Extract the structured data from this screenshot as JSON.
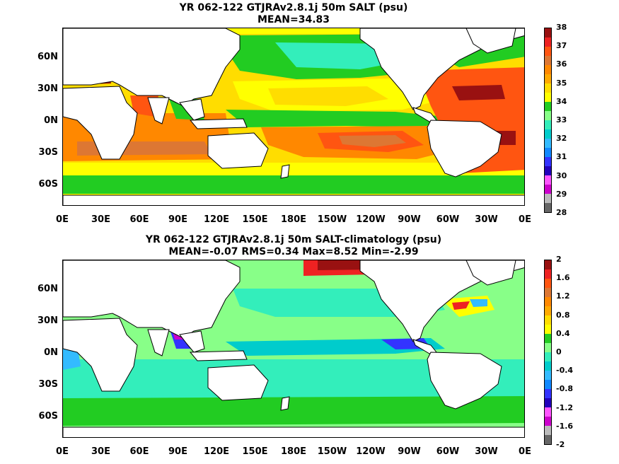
{
  "maps": [
    {
      "title_line1": "YR 062-122 GTJRAv2.8.1j 50m SALT (psu)",
      "title_line2": "MEAN=34.83",
      "lat_labels": [
        "60N",
        "30N",
        "0N",
        "30S",
        "60S"
      ],
      "lat_values": [
        60,
        30,
        0,
        -30,
        -60
      ],
      "lon_labels": [
        "0E",
        "30E",
        "60E",
        "90E",
        "120E",
        "150E",
        "180E",
        "150W",
        "120W",
        "90W",
        "60W",
        "30W",
        "0E"
      ],
      "colorbar": {
        "tick_labels": [
          "38",
          "37",
          "36",
          "35",
          "34",
          "33",
          "32",
          "31",
          "30",
          "29",
          "28"
        ],
        "tick_values": [
          38,
          37,
          36,
          35,
          34,
          33,
          32,
          31,
          30,
          29,
          28
        ],
        "min": 28,
        "max": 38,
        "colors": [
          "#666666",
          "#bbbbbb",
          "#cc00cc",
          "#ff55ff",
          "#2200bb",
          "#3333ff",
          "#1188ff",
          "#33bbff",
          "#00cccc",
          "#33eebb",
          "#88ff88",
          "#22cc22",
          "#ffff00",
          "#ffdd00",
          "#ffaa00",
          "#ff8800",
          "#dd7733",
          "#ff5511",
          "#ee2222",
          "#991111"
        ]
      }
    },
    {
      "title_line1": "YR 062-122 GTJRAv2.8.1j 50m SALT-climatology (psu)",
      "title_line2": "MEAN=-0.07   RMS=0.34   Max=8.52   Min=-2.99",
      "lat_labels": [
        "60N",
        "30N",
        "0N",
        "30S",
        "60S"
      ],
      "lat_values": [
        60,
        30,
        0,
        -30,
        -60
      ],
      "lon_labels": [
        "0E",
        "30E",
        "60E",
        "90E",
        "120E",
        "150E",
        "180E",
        "150W",
        "120W",
        "90W",
        "60W",
        "30W",
        "0E"
      ],
      "colorbar": {
        "tick_labels": [
          "2",
          "1.6",
          "1.2",
          "0.8",
          "0.4",
          "0",
          "-0.4",
          "-0.8",
          "-1.2",
          "-1.6",
          "-2"
        ],
        "tick_values": [
          2,
          1.6,
          1.2,
          0.8,
          0.4,
          0,
          -0.4,
          -0.8,
          -1.2,
          -1.6,
          -2
        ],
        "min": -2,
        "max": 2,
        "colors": [
          "#666666",
          "#bbbbbb",
          "#cc00cc",
          "#ff55ff",
          "#2200bb",
          "#3333ff",
          "#1188ff",
          "#33bbff",
          "#00cccc",
          "#33eebb",
          "#88ff88",
          "#22cc22",
          "#ffff00",
          "#ffdd00",
          "#ffaa00",
          "#ff8800",
          "#dd7733",
          "#ff5511",
          "#ee2222",
          "#991111"
        ]
      }
    }
  ],
  "style": {
    "land": "#ffffff",
    "coast": "#000000",
    "top_colors": {
      "bg": "#ffdd00",
      "green": "#22cc22",
      "yellow": "#ffff00",
      "orange": "#ff8800",
      "red": "#ff5511",
      "brown": "#dd7733",
      "darkred": "#991111",
      "cyan": "#33eebb"
    },
    "bottom_colors": {
      "bg": "#88ff88",
      "cyan": "#33eebb",
      "teal": "#00cccc",
      "lightblue": "#33bbff",
      "blue": "#3333ff",
      "green": "#22cc22",
      "yellow": "#ffff00",
      "red": "#ee2222",
      "darkred": "#991111",
      "purple": "#cc00cc"
    }
  }
}
